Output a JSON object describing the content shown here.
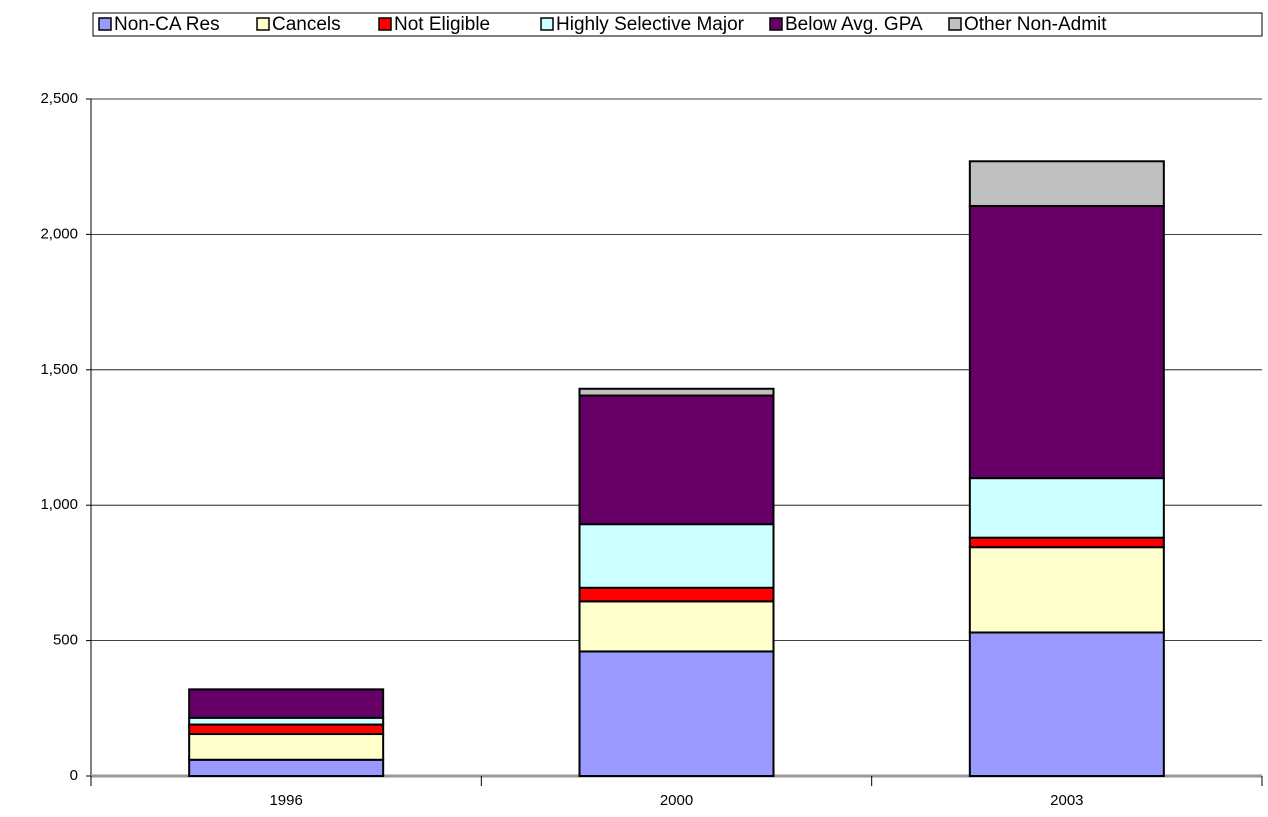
{
  "chart_data": {
    "type": "stacked_bar",
    "categories": [
      "1996",
      "2000",
      "2003"
    ],
    "series": [
      {
        "name": "Non-CA Res",
        "color": "#9999ff",
        "values": [
          60,
          460,
          530
        ]
      },
      {
        "name": "Cancels",
        "color": "#ffffcc",
        "values": [
          95,
          185,
          315
        ]
      },
      {
        "name": "Not Eligible",
        "color": "#ff0000",
        "values": [
          35,
          50,
          35
        ]
      },
      {
        "name": "Highly Selective Major",
        "color": "#ccffff",
        "values": [
          25,
          235,
          220
        ]
      },
      {
        "name": "Below Avg. GPA",
        "color": "#660066",
        "values": [
          105,
          475,
          1005
        ]
      },
      {
        "name": "Other Non-Admit",
        "color": "#c0c0c0",
        "values": [
          0,
          25,
          165
        ]
      }
    ],
    "ylim": [
      0,
      2500
    ],
    "yticks": [
      0,
      500,
      {
        "value": 1000,
        "label": "1,000"
      },
      {
        "value": 1500,
        "label": "1,500"
      },
      {
        "value": 2000,
        "label": "2,000"
      },
      {
        "value": 2500,
        "label": "2,500"
      }
    ],
    "grid": true,
    "legend": "top"
  }
}
